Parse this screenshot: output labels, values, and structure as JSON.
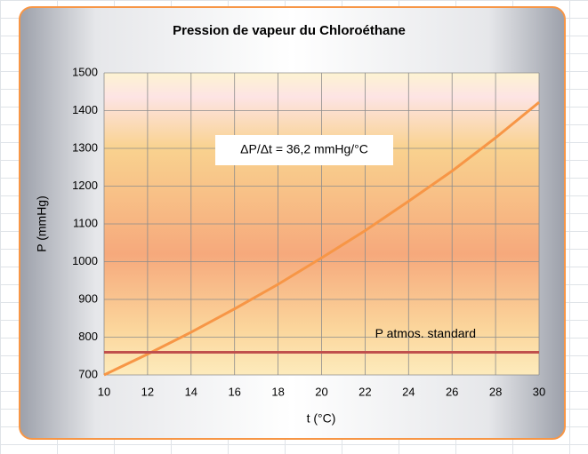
{
  "chart_data": {
    "type": "line",
    "title": "Pression de vapeur du Chloroéthane",
    "x_label": "t (°C)",
    "y_label": "P (mmHg)",
    "annotation": "ΔP/Δt = 36,2 mmHg/°C",
    "x": [
      10,
      12,
      14,
      16,
      18,
      20,
      22,
      24,
      26,
      28,
      30
    ],
    "series": [
      {
        "color": "#f79646",
        "values": [
          700,
          755,
          813,
          875,
          940,
          1010,
          1082,
          1160,
          1240,
          1328,
          1422
        ]
      },
      {
        "name": "P atmos. standard",
        "color": "#c0504d",
        "x": [
          10,
          30
        ],
        "values": [
          760,
          760
        ]
      }
    ],
    "xlim": [
      10,
      30
    ],
    "xticks": [
      10,
      12,
      14,
      16,
      18,
      20,
      22,
      24,
      26,
      28,
      30
    ],
    "ylim": [
      700,
      1500
    ],
    "yticks": [
      700,
      800,
      900,
      1000,
      1100,
      1200,
      1300,
      1400,
      1500
    ],
    "grid": true
  }
}
